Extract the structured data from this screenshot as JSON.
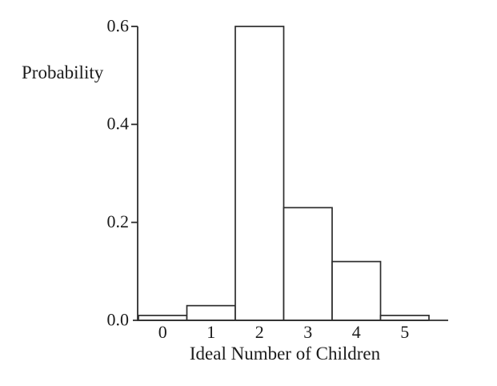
{
  "chart_data": {
    "type": "bar",
    "title": "",
    "ylabel": "Probability",
    "xlabel": "Ideal Number of Children",
    "categories": [
      "0",
      "1",
      "2",
      "3",
      "4",
      "5"
    ],
    "values": [
      0.01,
      0.03,
      0.6,
      0.23,
      0.12,
      0.01
    ],
    "ytick_labels": [
      "0.0",
      "0.2",
      "0.4",
      "0.6"
    ],
    "ytick_values": [
      0.0,
      0.2,
      0.4,
      0.6
    ],
    "ylim": [
      0,
      0.6
    ],
    "grid": false,
    "legend": "none",
    "bar_fill": "#ffffff",
    "bar_stroke": "#2d2d2d",
    "axis_color": "#2d2d2d",
    "text_color": "#1b1b1b",
    "background": "#ffffff"
  }
}
